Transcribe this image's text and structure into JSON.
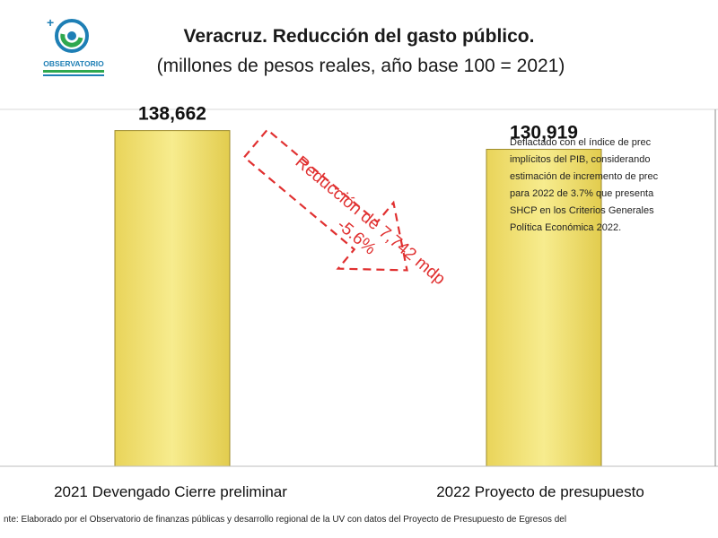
{
  "header": {
    "title": "Veracruz. Reducción del gasto público.",
    "subtitle": "(millones de pesos reales, año base 100 = 2021)"
  },
  "logo": {
    "name": "OBSERVATORIO",
    "colors": {
      "blue": "#1e7fb5",
      "green": "#2fa84f"
    }
  },
  "chart_data": {
    "type": "bar",
    "title": "Veracruz. Reducción del gasto público.",
    "subtitle": "(millones de pesos reales, año base 100 = 2021)",
    "categories": [
      "2021 Devengado Cierre preliminar",
      "2022 Proyecto de presupuesto"
    ],
    "values": [
      138662,
      130919
    ],
    "value_labels": [
      "138,662",
      "130,919"
    ],
    "ylim": [
      0,
      150000
    ],
    "grid": false,
    "legend": "none",
    "bar_color": "#f2e27a",
    "bar_stroke": "#9c8a2a",
    "annotation": {
      "line1": "Reducción de 7,742 mdp",
      "line2": "-5.6%",
      "color": "#e03030"
    }
  },
  "note": {
    "lines": [
      "Deflactado con el índice de prec",
      "implícitos del PIB, considerando",
      "estimación de incremento de prec",
      "para 2022 de 3.7% que presenta",
      "SHCP en los Criterios Generales",
      "Política Económica 2022."
    ]
  },
  "source": "nte: Elaborado por el Observatorio de finanzas públicas y desarrollo regional de la UV con datos del Proyecto de Presupuesto de Egresos del"
}
